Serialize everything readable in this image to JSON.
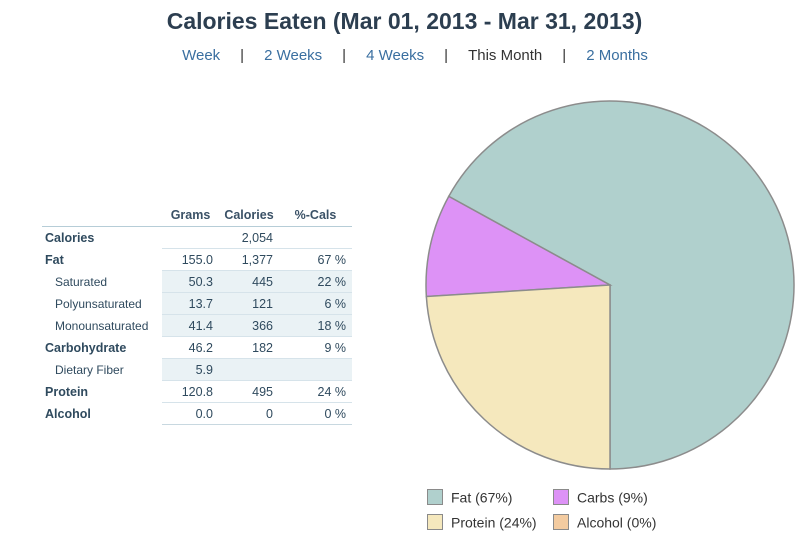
{
  "title": "Calories Eaten (Mar 01, 2013 - Mar 31, 2013)",
  "range_nav": {
    "items": [
      {
        "label": "Week",
        "active": false
      },
      {
        "label": "2 Weeks",
        "active": false
      },
      {
        "label": "4 Weeks",
        "active": false
      },
      {
        "label": "This Month",
        "active": true
      },
      {
        "label": "2 Months",
        "active": false
      }
    ],
    "separator": "|"
  },
  "table": {
    "headers": [
      "",
      "Grams",
      "Calories",
      "%-Cals"
    ],
    "rows": [
      {
        "label": "Calories",
        "grams": "",
        "calories": "2,054",
        "pct": "",
        "level": "main"
      },
      {
        "label": "Fat",
        "grams": "155.0",
        "calories": "1,377",
        "pct": "67 %",
        "level": "main"
      },
      {
        "label": "Saturated",
        "grams": "50.3",
        "calories": "445",
        "pct": "22 %",
        "level": "sub"
      },
      {
        "label": "Polyunsaturated",
        "grams": "13.7",
        "calories": "121",
        "pct": "6 %",
        "level": "sub"
      },
      {
        "label": "Monounsaturated",
        "grams": "41.4",
        "calories": "366",
        "pct": "18 %",
        "level": "sub"
      },
      {
        "label": "Carbohydrate",
        "grams": "46.2",
        "calories": "182",
        "pct": "9 %",
        "level": "main"
      },
      {
        "label": "Dietary Fiber",
        "grams": "5.9",
        "calories": "",
        "pct": "",
        "level": "sub"
      },
      {
        "label": "Protein",
        "grams": "120.8",
        "calories": "495",
        "pct": "24 %",
        "level": "main"
      },
      {
        "label": "Alcohol",
        "grams": "0.0",
        "calories": "0",
        "pct": "0 %",
        "level": "main"
      }
    ]
  },
  "chart_data": {
    "type": "pie",
    "slices": [
      {
        "name": "Fat",
        "value": 67,
        "color": "#b0d0cd"
      },
      {
        "name": "Carbs",
        "value": 9,
        "color": "#dd92f6"
      },
      {
        "name": "Protein",
        "value": 24,
        "color": "#f5e8bd"
      },
      {
        "name": "Alcohol",
        "value": 0,
        "color": "#f3cba0"
      }
    ],
    "legend": [
      {
        "label": "Fat  (67%)",
        "color": "#b0d0cd"
      },
      {
        "label": "Carbs  (9%)",
        "color": "#dd92f6"
      },
      {
        "label": "Protein  (24%)",
        "color": "#f5e8bd"
      },
      {
        "label": "Alcohol  (0%)",
        "color": "#f3cba0"
      }
    ],
    "legend_position": "bottom",
    "stroke_color": "#8c8c8c"
  }
}
